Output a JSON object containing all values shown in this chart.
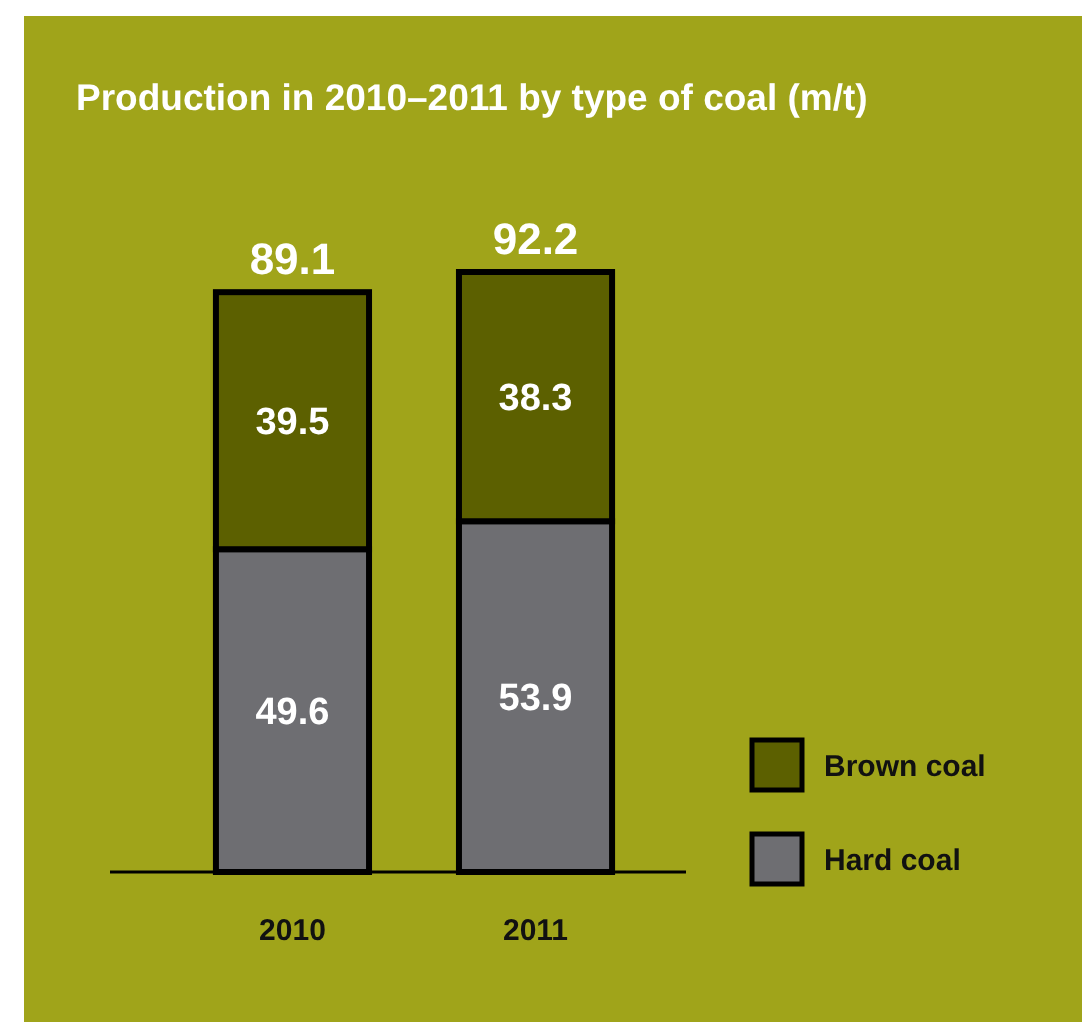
{
  "chart_data": {
    "type": "bar",
    "title": "Production in 2010–2011 by type of coal (m/t)",
    "categories": [
      "2010",
      "2011"
    ],
    "stacked": true,
    "data_labels": true,
    "totals": [
      "89.1",
      "92.2"
    ],
    "legend": "bottom right",
    "series": [
      {
        "name": "Hard coal",
        "color": "#6e6e72",
        "values": [
          49.6,
          53.9
        ]
      },
      {
        "name": "Brown coal",
        "color": "#5c6000",
        "values": [
          39.5,
          38.3
        ]
      }
    ]
  }
}
